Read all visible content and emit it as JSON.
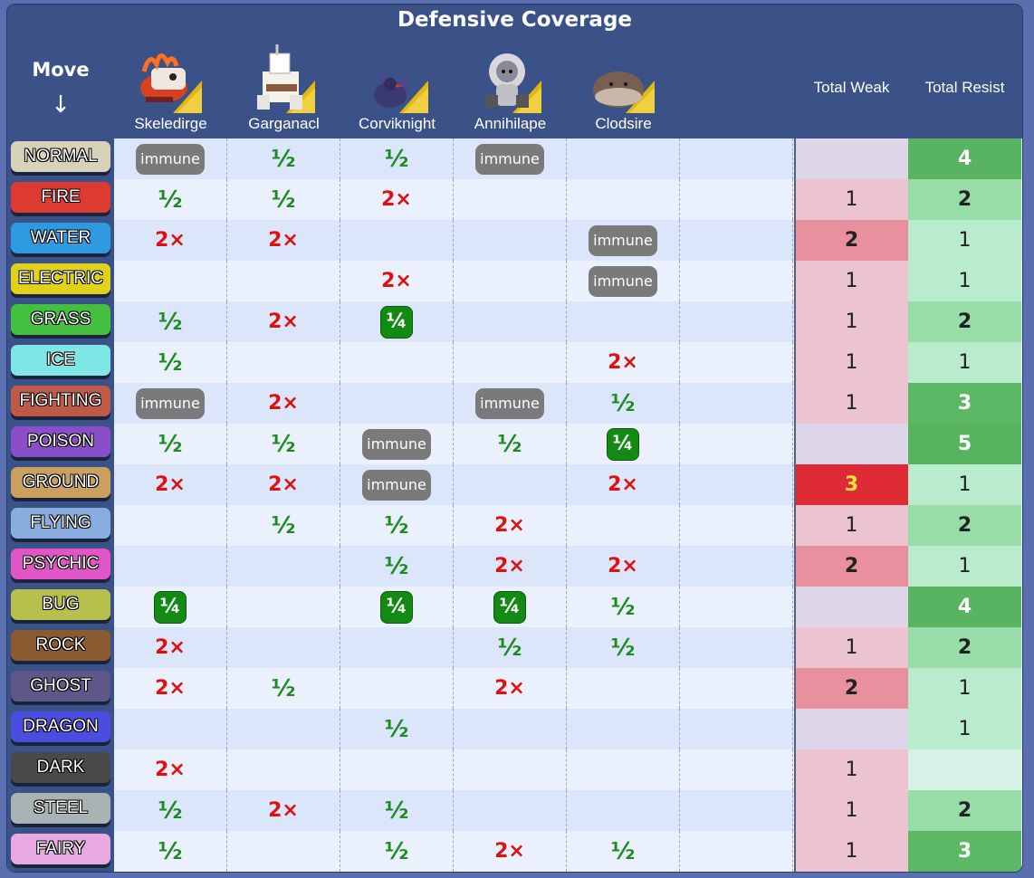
{
  "title": "Defensive Coverage",
  "move_header": "Move",
  "move_arrow": "↓",
  "pokemon": [
    {
      "name": "Skeledirge",
      "icon": "skeledirge-sprite-icon"
    },
    {
      "name": "Garganacl",
      "icon": "garganacl-sprite-icon"
    },
    {
      "name": "Corviknight",
      "icon": "corviknight-sprite-icon"
    },
    {
      "name": "Annihilape",
      "icon": "annihilape-sprite-icon"
    },
    {
      "name": "Clodsire",
      "icon": "clodsire-sprite-icon"
    }
  ],
  "total_weak_header": "Total Weak",
  "total_resist_header": "Total Resist",
  "symbols": {
    "immune": "immune",
    "half": "½",
    "quarter": "¼",
    "double": "2×"
  },
  "rows": [
    {
      "type": "NORMAL",
      "color": "#d8d2b8",
      "cells": [
        "immune",
        "half",
        "half",
        "immune",
        ""
      ],
      "weak": "",
      "resist": "4"
    },
    {
      "type": "FIRE",
      "color": "#dd3a32",
      "cells": [
        "half",
        "half",
        "double",
        "",
        ""
      ],
      "weak": "1",
      "resist": "2"
    },
    {
      "type": "WATER",
      "color": "#2f9ae0",
      "cells": [
        "double",
        "double",
        "",
        "",
        "immune"
      ],
      "weak": "2",
      "resist": "1"
    },
    {
      "type": "ELECTRIC",
      "color": "#e0d21a",
      "cells": [
        "",
        "",
        "double",
        "",
        "immune"
      ],
      "weak": "1",
      "resist": "1"
    },
    {
      "type": "GRASS",
      "color": "#44c040",
      "cells": [
        "half",
        "double",
        "quarter",
        "",
        ""
      ],
      "weak": "1",
      "resist": "2"
    },
    {
      "type": "ICE",
      "color": "#7fe6e6",
      "cells": [
        "half",
        "",
        "",
        "",
        "double"
      ],
      "weak": "1",
      "resist": "1"
    },
    {
      "type": "FIGHTING",
      "color": "#c05a48",
      "cells": [
        "immune",
        "double",
        "",
        "immune",
        "half"
      ],
      "weak": "1",
      "resist": "3"
    },
    {
      "type": "POISON",
      "color": "#8a4ec8",
      "cells": [
        "half",
        "half",
        "immune",
        "half",
        "quarter"
      ],
      "weak": "",
      "resist": "5"
    },
    {
      "type": "GROUND",
      "color": "#c9a060",
      "cells": [
        "double",
        "double",
        "immune",
        "",
        "double"
      ],
      "weak": "3",
      "resist": "1"
    },
    {
      "type": "FLYING",
      "color": "#88aee0",
      "cells": [
        "",
        "half",
        "half",
        "double",
        ""
      ],
      "weak": "1",
      "resist": "2"
    },
    {
      "type": "PSYCHIC",
      "color": "#e055c8",
      "cells": [
        "",
        "",
        "half",
        "double",
        "double"
      ],
      "weak": "2",
      "resist": "1"
    },
    {
      "type": "BUG",
      "color": "#b6c04a",
      "cells": [
        "quarter",
        "",
        "quarter",
        "quarter",
        "half"
      ],
      "weak": "",
      "resist": "4"
    },
    {
      "type": "ROCK",
      "color": "#8a5a30",
      "cells": [
        "double",
        "",
        "",
        "half",
        "half"
      ],
      "weak": "1",
      "resist": "2"
    },
    {
      "type": "GHOST",
      "color": "#5e5888",
      "cells": [
        "double",
        "half",
        "",
        "double",
        ""
      ],
      "weak": "2",
      "resist": "1"
    },
    {
      "type": "DRAGON",
      "color": "#4a4ee0",
      "cells": [
        "",
        "",
        "half",
        "",
        ""
      ],
      "weak": "",
      "resist": "1"
    },
    {
      "type": "DARK",
      "color": "#4a4848",
      "cells": [
        "double",
        "",
        "",
        "",
        ""
      ],
      "weak": "1",
      "resist": ""
    },
    {
      "type": "STEEL",
      "color": "#a8b4b4",
      "cells": [
        "half",
        "double",
        "half",
        "",
        ""
      ],
      "weak": "1",
      "resist": "2"
    },
    {
      "type": "FAIRY",
      "color": "#e8a8e0",
      "cells": [
        "half",
        "",
        "half",
        "double",
        "half"
      ],
      "weak": "1",
      "resist": "3"
    }
  ],
  "weak_colors": {
    "": "#ddd6e8",
    "1": "#ecc4d0",
    "2": "#e8909e",
    "3": "#dd2a35"
  },
  "resist_colors": {
    "": "#d6f2e6",
    "1": "#b8eccc",
    "2": "#98dca8",
    "3": "#5cb864",
    "4": "#58b460",
    "5": "#56b45e"
  }
}
